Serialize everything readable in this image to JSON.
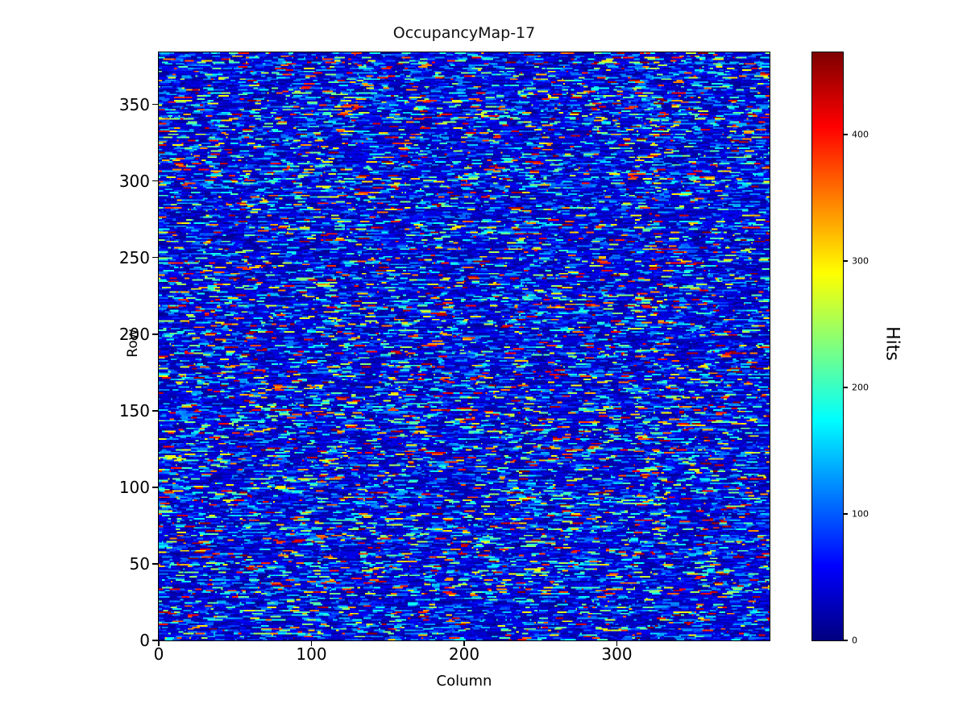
{
  "figure": {
    "title": "OccupancyMap-17"
  },
  "chart_data": {
    "type": "heatmap",
    "title": "OccupancyMap-17",
    "xlabel": "Column",
    "ylabel": "Row",
    "colorbar_label": "Hits",
    "ncols": 400,
    "nrows": 384,
    "x_range": [
      0,
      400
    ],
    "y_range": [
      0,
      384
    ],
    "vmin": 0,
    "vmax": 465,
    "colormap": "jet",
    "x_ticks": [
      0,
      100,
      200,
      300
    ],
    "y_ticks": [
      0,
      50,
      100,
      150,
      200,
      250,
      300,
      350
    ],
    "colorbar_ticks": [
      0,
      100,
      200,
      300,
      400
    ],
    "grid": false,
    "legend": "none",
    "pattern": {
      "description": "Dense pseudo-random occupancy noise: dark navy low-hit background with short horizontal dash segments of higher hit counts on every row; sparse bright segments (cyan/green/yellow/orange/red) reaching 250-460 hits; row-to-row variation creates faint horizontal banding.",
      "seed": 17,
      "segment_length_cells": [
        1,
        7
      ],
      "background_value_range": [
        8,
        53
      ],
      "mid_value_range": [
        50,
        140
      ],
      "high_value_range": [
        140,
        250
      ],
      "very_high_value_range": [
        250,
        465
      ]
    }
  }
}
